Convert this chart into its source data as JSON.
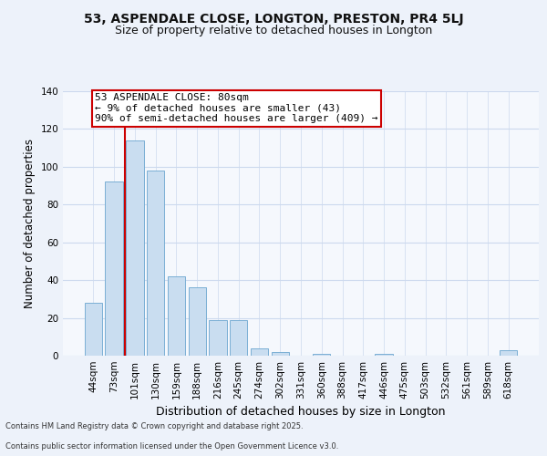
{
  "title1": "53, ASPENDALE CLOSE, LONGTON, PRESTON, PR4 5LJ",
  "title2": "Size of property relative to detached houses in Longton",
  "xlabel": "Distribution of detached houses by size in Longton",
  "ylabel": "Number of detached properties",
  "categories": [
    "44sqm",
    "73sqm",
    "101sqm",
    "130sqm",
    "159sqm",
    "188sqm",
    "216sqm",
    "245sqm",
    "274sqm",
    "302sqm",
    "331sqm",
    "360sqm",
    "388sqm",
    "417sqm",
    "446sqm",
    "475sqm",
    "503sqm",
    "532sqm",
    "561sqm",
    "589sqm",
    "618sqm"
  ],
  "values": [
    28,
    92,
    114,
    98,
    42,
    36,
    19,
    19,
    4,
    2,
    0,
    1,
    0,
    0,
    1,
    0,
    0,
    0,
    0,
    0,
    3
  ],
  "bar_color": "#c9ddf0",
  "bar_edge_color": "#7aafd4",
  "vline_x": 1.5,
  "vline_color": "#cc0000",
  "annotation_text": "53 ASPENDALE CLOSE: 80sqm\n← 9% of detached houses are smaller (43)\n90% of semi-detached houses are larger (409) →",
  "annotation_fontsize": 8,
  "ylim": [
    0,
    140
  ],
  "yticks": [
    0,
    20,
    40,
    60,
    80,
    100,
    120,
    140
  ],
  "footer1": "Contains HM Land Registry data © Crown copyright and database right 2025.",
  "footer2": "Contains public sector information licensed under the Open Government Licence v3.0.",
  "bg_color": "#edf2fa",
  "plot_bg_color": "#f5f8fd",
  "grid_color": "#ccd9ee",
  "title_fontsize": 10,
  "subtitle_fontsize": 9,
  "xlabel_fontsize": 9,
  "ylabel_fontsize": 8.5,
  "tick_fontsize": 7.5,
  "footer_fontsize": 6
}
